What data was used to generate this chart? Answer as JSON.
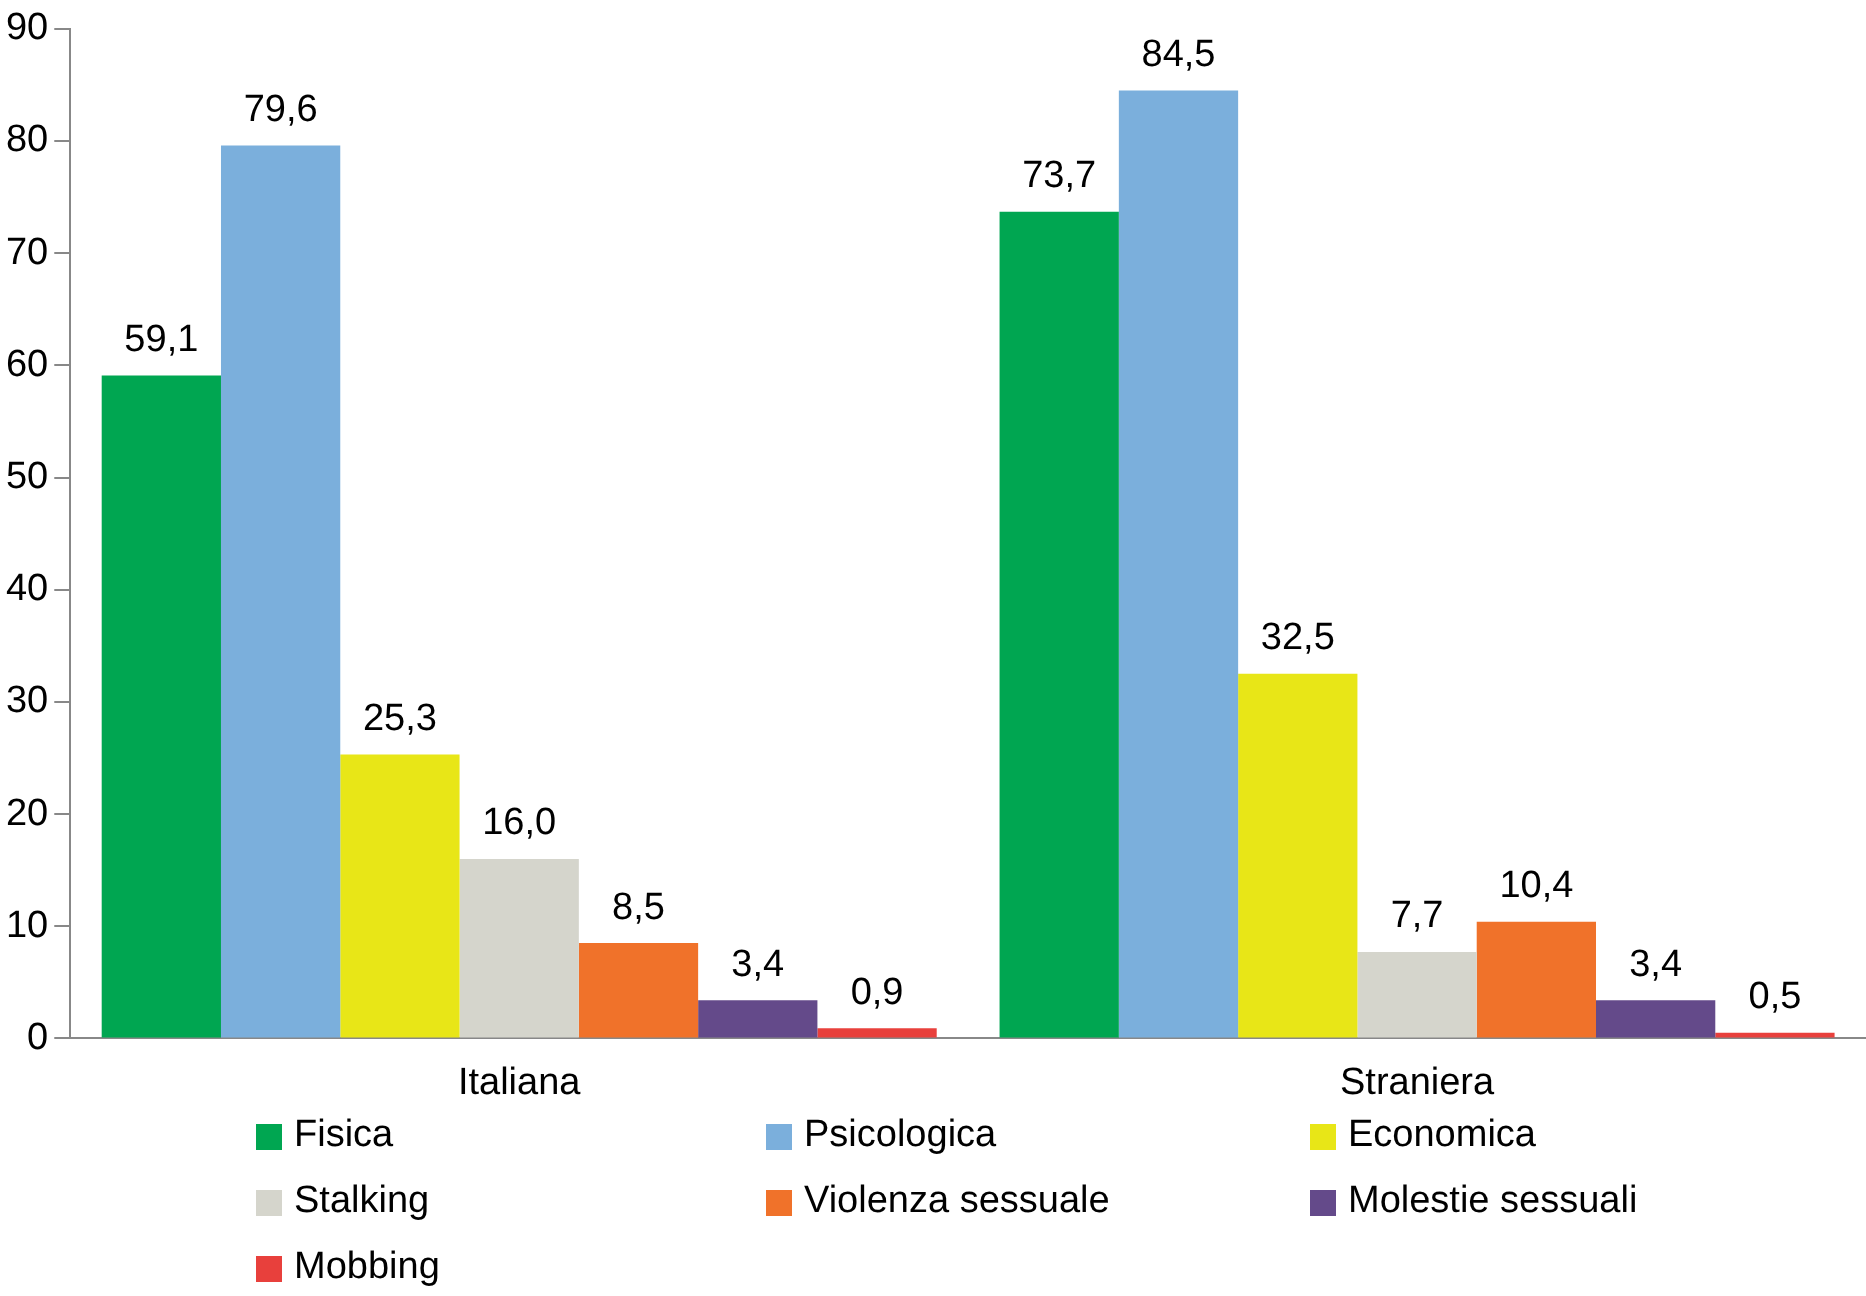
{
  "chart_data": {
    "type": "bar",
    "categories": [
      "Italiana",
      "Straniera"
    ],
    "ylim": [
      0,
      90
    ],
    "yticks": [
      0,
      10,
      20,
      30,
      40,
      50,
      60,
      70,
      80,
      90
    ],
    "grid": false,
    "legend": "bottom",
    "series": [
      {
        "name": "Fisica",
        "color": "#00a651",
        "values": [
          59.1,
          73.7
        ],
        "value_labels": [
          "59,1",
          "73,7"
        ]
      },
      {
        "name": "Psicologica",
        "color": "#7bafdc",
        "values": [
          79.6,
          84.5
        ],
        "value_labels": [
          "79,6",
          "84,5"
        ]
      },
      {
        "name": "Economica",
        "color": "#e8e617",
        "values": [
          25.3,
          32.5
        ],
        "value_labels": [
          "25,3",
          "32,5"
        ]
      },
      {
        "name": "Stalking",
        "color": "#d5d5cc",
        "values": [
          16.0,
          7.7
        ],
        "value_labels": [
          "16,0",
          "7,7"
        ]
      },
      {
        "name": "Violenza sessuale",
        "color": "#f0722a",
        "values": [
          8.5,
          10.4
        ],
        "value_labels": [
          "8,5",
          "10,4"
        ]
      },
      {
        "name": "Molestie sessuali",
        "color": "#644a8a",
        "values": [
          3.4,
          3.4
        ],
        "value_labels": [
          "3,4",
          "3,4"
        ]
      },
      {
        "name": "Mobbing",
        "color": "#e8403c",
        "values": [
          0.9,
          0.5
        ],
        "value_labels": [
          "0,9",
          "0,5"
        ]
      }
    ]
  }
}
